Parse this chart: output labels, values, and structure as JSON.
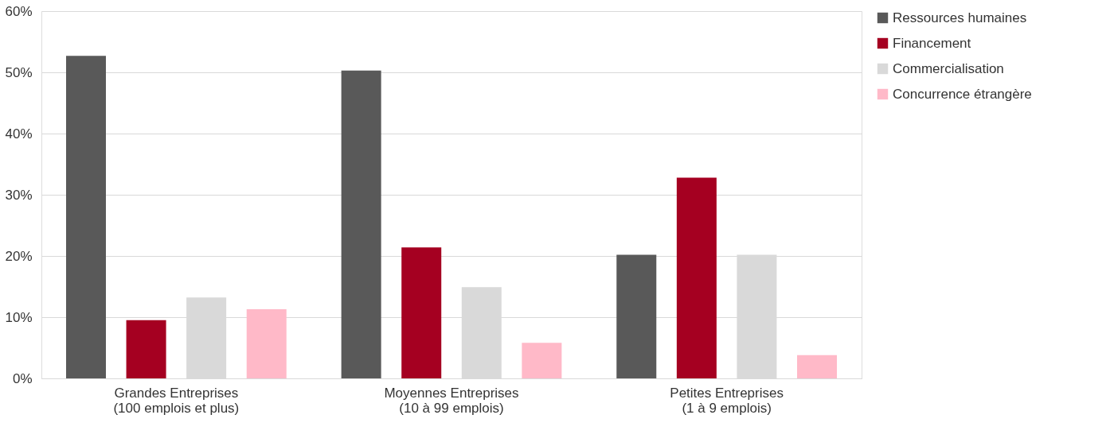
{
  "chart_data": {
    "type": "bar",
    "categories": [
      "Grandes Entreprises\n(100 emplois et plus)",
      "Moyennes Entreprises\n(10 à 99 emplois)",
      "Petites Entreprises\n(1 à 9 emplois)"
    ],
    "series": [
      {
        "name": "Ressources humaines",
        "color": "#595959",
        "values": [
          52.7,
          50.3,
          20.2
        ]
      },
      {
        "name": "Financement",
        "color": "#a50021",
        "values": [
          9.5,
          21.4,
          32.8
        ]
      },
      {
        "name": "Commercialisation",
        "color": "#d9d9d9",
        "values": [
          13.2,
          14.9,
          20.2
        ]
      },
      {
        "name": "Concurrence étrangère",
        "color": "#ffb9c8",
        "values": [
          11.3,
          5.8,
          3.8
        ]
      }
    ],
    "ylim": [
      0,
      60
    ],
    "yticks": [
      {
        "value": 0,
        "label": "0%"
      },
      {
        "value": 10,
        "label": "10%"
      },
      {
        "value": 20,
        "label": "20%"
      },
      {
        "value": 30,
        "label": "30%"
      },
      {
        "value": 40,
        "label": "40%"
      },
      {
        "value": 50,
        "label": "50%"
      },
      {
        "value": 60,
        "label": "60%"
      }
    ],
    "grid": "y",
    "legend": "right"
  }
}
